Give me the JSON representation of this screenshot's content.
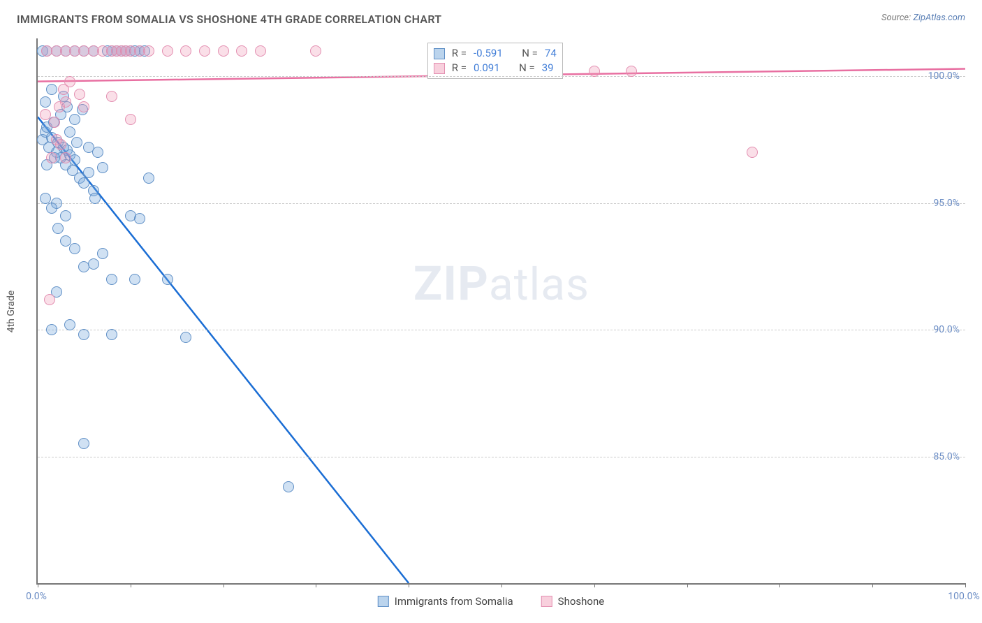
{
  "title": "IMMIGRANTS FROM SOMALIA VS SHOSHONE 4TH GRADE CORRELATION CHART",
  "source_prefix": "Source: ",
  "source_link": "ZipAtlas.com",
  "y_axis_label": "4th Grade",
  "watermark_bold": "ZIP",
  "watermark_light": "atlas",
  "chart": {
    "type": "scatter-with-trend",
    "xlim": [
      0,
      100
    ],
    "ylim": [
      80,
      101.5
    ],
    "x_ticks": [
      0,
      10,
      20,
      30,
      40,
      50,
      60,
      70,
      80,
      90,
      100
    ],
    "x_tick_labels": {
      "0": "0.0%",
      "100": "100.0%"
    },
    "y_ticks": [
      85,
      90,
      95,
      100
    ],
    "y_tick_labels": {
      "85": "85.0%",
      "90": "90.0%",
      "95": "95.0%",
      "100": "100.0%"
    },
    "background": "#ffffff",
    "grid_color": "#cccccc",
    "axis_color": "#777777",
    "tick_label_color": "#6a8cc4"
  },
  "series": [
    {
      "key": "somalia",
      "label": "Immigrants from Somalia",
      "marker_fill": "rgba(120,170,220,0.35)",
      "marker_stroke": "#5f8fc6",
      "marker_size": 16,
      "trend_color": "#1a6dd4",
      "trend_width": 2.5,
      "trend": {
        "x1": 0,
        "y1": 98.4,
        "x2": 40,
        "y2": 80
      },
      "dashed_extension": true,
      "r_value": "-0.591",
      "n_value": "74",
      "points": [
        [
          0.5,
          97.5
        ],
        [
          0.8,
          97.8
        ],
        [
          1.0,
          98.0
        ],
        [
          1.2,
          97.2
        ],
        [
          1.5,
          97.6
        ],
        [
          1.7,
          98.2
        ],
        [
          2.0,
          97.0
        ],
        [
          2.2,
          97.4
        ],
        [
          2.5,
          96.8
        ],
        [
          2.8,
          97.2
        ],
        [
          3.0,
          96.5
        ],
        [
          3.2,
          97.1
        ],
        [
          3.5,
          96.9
        ],
        [
          3.8,
          96.3
        ],
        [
          4.0,
          96.7
        ],
        [
          4.5,
          96.0
        ],
        [
          5.0,
          95.8
        ],
        [
          5.5,
          96.2
        ],
        [
          6.0,
          95.5
        ],
        [
          6.5,
          97.0
        ],
        [
          7.0,
          96.4
        ],
        [
          7.5,
          101.0
        ],
        [
          8.0,
          101.0
        ],
        [
          8.5,
          101.0
        ],
        [
          9.0,
          101.0
        ],
        [
          9.5,
          101.0
        ],
        [
          10.0,
          101.0
        ],
        [
          10.5,
          101.0
        ],
        [
          11.0,
          101.0
        ],
        [
          11.5,
          101.0
        ],
        [
          12.0,
          96.0
        ],
        [
          0.5,
          101.0
        ],
        [
          1.0,
          101.0
        ],
        [
          2.0,
          101.0
        ],
        [
          3.0,
          101.0
        ],
        [
          4.0,
          101.0
        ],
        [
          5.0,
          101.0
        ],
        [
          6.0,
          101.0
        ],
        [
          2.0,
          95.0
        ],
        [
          3.0,
          94.5
        ],
        [
          4.0,
          93.2
        ],
        [
          5.0,
          92.5
        ],
        [
          6.0,
          92.6
        ],
        [
          7.0,
          93.0
        ],
        [
          8.0,
          92.0
        ],
        [
          10.0,
          94.5
        ],
        [
          11.0,
          94.4
        ],
        [
          1.5,
          90.0
        ],
        [
          3.5,
          90.2
        ],
        [
          5.0,
          89.8
        ],
        [
          8.0,
          89.8
        ],
        [
          10.5,
          92.0
        ],
        [
          14.0,
          92.0
        ],
        [
          16.0,
          89.7
        ],
        [
          5.0,
          85.5
        ],
        [
          0.8,
          95.2
        ],
        [
          1.5,
          94.8
        ],
        [
          2.2,
          94.0
        ],
        [
          3.0,
          93.5
        ],
        [
          1.0,
          96.5
        ],
        [
          1.8,
          96.8
        ],
        [
          2.5,
          98.5
        ],
        [
          3.2,
          98.8
        ],
        [
          4.0,
          98.3
        ],
        [
          4.8,
          98.7
        ],
        [
          2.8,
          99.2
        ],
        [
          1.5,
          99.5
        ],
        [
          0.8,
          99.0
        ],
        [
          2.0,
          91.5
        ],
        [
          27.0,
          83.8
        ],
        [
          3.5,
          97.8
        ],
        [
          4.2,
          97.4
        ],
        [
          5.5,
          97.2
        ],
        [
          6.2,
          95.2
        ]
      ]
    },
    {
      "key": "shoshone",
      "label": "Shoshone",
      "marker_fill": "rgba(240,150,180,0.3)",
      "marker_stroke": "#e38fb1",
      "marker_size": 16,
      "trend_color": "#e86fa1",
      "trend_width": 2.5,
      "trend": {
        "x1": 0,
        "y1": 99.8,
        "x2": 100,
        "y2": 100.3
      },
      "dashed_extension": false,
      "r_value": "0.091",
      "n_value": "39",
      "points": [
        [
          1.0,
          101.0
        ],
        [
          2.0,
          101.0
        ],
        [
          3.0,
          101.0
        ],
        [
          4.0,
          101.0
        ],
        [
          5.0,
          101.0
        ],
        [
          6.0,
          101.0
        ],
        [
          7.0,
          101.0
        ],
        [
          8.0,
          101.0
        ],
        [
          8.5,
          101.0
        ],
        [
          9.0,
          101.0
        ],
        [
          9.5,
          101.0
        ],
        [
          10.0,
          101.0
        ],
        [
          11.0,
          101.0
        ],
        [
          12.0,
          101.0
        ],
        [
          14.0,
          101.0
        ],
        [
          16.0,
          101.0
        ],
        [
          18.0,
          101.0
        ],
        [
          20.0,
          101.0
        ],
        [
          22.0,
          101.0
        ],
        [
          24.0,
          101.0
        ],
        [
          30.0,
          101.0
        ],
        [
          3.0,
          99.0
        ],
        [
          5.0,
          98.8
        ],
        [
          8.0,
          99.2
        ],
        [
          10.0,
          98.3
        ],
        [
          60.0,
          100.2
        ],
        [
          64.0,
          100.2
        ],
        [
          77.0,
          97.0
        ],
        [
          2.0,
          97.5
        ],
        [
          2.5,
          97.3
        ],
        [
          1.5,
          96.8
        ],
        [
          3.0,
          96.8
        ],
        [
          1.8,
          98.2
        ],
        [
          2.3,
          98.8
        ],
        [
          0.8,
          98.5
        ],
        [
          1.3,
          91.2
        ],
        [
          2.8,
          99.5
        ],
        [
          3.5,
          99.8
        ],
        [
          4.5,
          99.3
        ]
      ]
    }
  ],
  "stat_box": {
    "r_label": "R =",
    "n_label": "N ="
  },
  "legend_items": [
    {
      "swatch": "blue",
      "label_key": "series.0.label"
    },
    {
      "swatch": "pink",
      "label_key": "series.1.label"
    }
  ]
}
